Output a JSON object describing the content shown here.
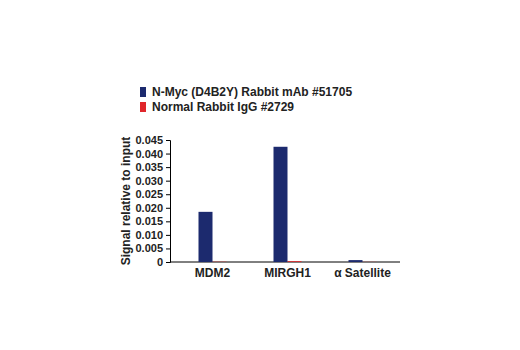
{
  "chart_data": {
    "type": "bar",
    "y_label": "Signal relative to input",
    "categories": [
      "MDM2",
      "MIRGH1",
      "α Satellite"
    ],
    "series": [
      {
        "name": "N-Myc (D4B2Y) Rabbit mAb #51705",
        "color": "#1c2a6e",
        "values": [
          0.0185,
          0.0425,
          0.0007
        ]
      },
      {
        "name": "Normal Rabbit IgG #2729",
        "color": "#e0262b",
        "values": [
          0.0001,
          0.0003,
          5e-05
        ]
      }
    ],
    "ylim": [
      0,
      0.045
    ],
    "yticks": [
      0,
      0.005,
      {
        "value": 0.01,
        "label": "0.010"
      },
      0.015,
      {
        "value": 0.02,
        "label": "0.020"
      },
      0.025,
      {
        "value": 0.03,
        "label": "0.030"
      },
      0.035,
      {
        "value": 0.04,
        "label": "0.040"
      },
      0.045
    ],
    "legend": "top",
    "grid": false
  }
}
